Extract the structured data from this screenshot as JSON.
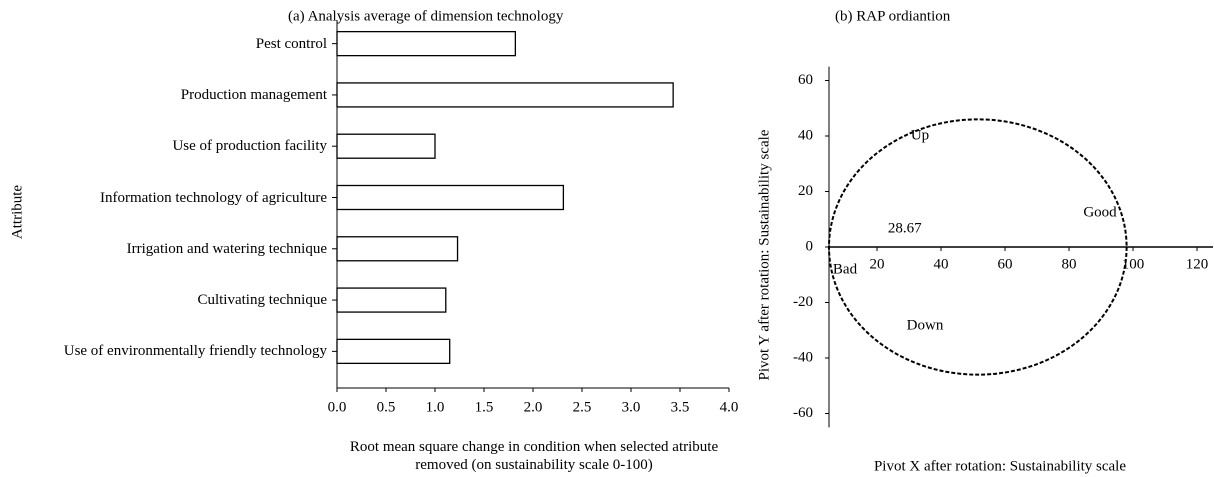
{
  "chart_data": [
    {
      "type": "barh",
      "title": "(a)  Analysis average of dimension technology",
      "ylabel": "Attribute",
      "xlabel": "Root mean square change in condition when selected atribute removed (on sustainability scale 0-100)",
      "categories": [
        "Pest control",
        "Production management",
        "Use of production facility",
        "Information technology of agriculture",
        "Irrigation and watering technique",
        "Cultivating technique",
        "Use of environmentally friendly technology"
      ],
      "values": [
        1.82,
        3.43,
        1.0,
        2.31,
        1.23,
        1.11,
        1.15
      ],
      "color": "#ffffff",
      "xlim": [
        0,
        4
      ],
      "xticks": [
        {
          "value": 0,
          "label": "0.0"
        },
        0.5,
        {
          "value": 1,
          "label": "1.0"
        },
        1.5,
        {
          "value": 2,
          "label": "2.0"
        },
        2.5,
        {
          "value": 3,
          "label": "3.0"
        },
        3.5,
        {
          "value": 4,
          "label": "4.0"
        }
      ]
    },
    {
      "type": "ordination",
      "title": "(b)  RAP ordiantion",
      "xlabel": "Pivot X after rotation: Sustainability scale",
      "ylabel": "Pivot Y after rotation: Sustainability scale",
      "score": 28.67,
      "annotations": [
        "Up",
        "Down",
        "Good",
        "Bad"
      ],
      "xlim": [
        5,
        125
      ],
      "xticks": [
        20,
        40,
        60,
        80,
        100,
        120
      ],
      "ylim": [
        -65,
        65
      ],
      "yticks": [
        60,
        40,
        20,
        0,
        -20,
        -40,
        -60
      ]
    }
  ]
}
